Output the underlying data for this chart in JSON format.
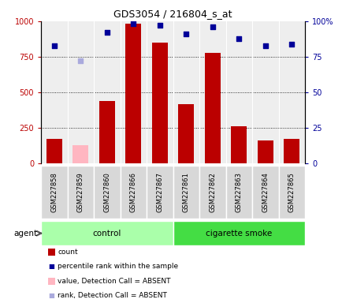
{
  "title": "GDS3054 / 216804_s_at",
  "samples": [
    "GSM227858",
    "GSM227859",
    "GSM227860",
    "GSM227866",
    "GSM227867",
    "GSM227861",
    "GSM227862",
    "GSM227863",
    "GSM227864",
    "GSM227865"
  ],
  "counts": [
    175,
    null,
    440,
    980,
    850,
    415,
    775,
    265,
    165,
    175
  ],
  "counts_absent": [
    null,
    130,
    null,
    null,
    null,
    null,
    null,
    null,
    null,
    null
  ],
  "percentile_ranks": [
    83,
    null,
    92,
    98,
    97,
    91,
    96,
    88,
    83,
    84
  ],
  "percentile_absent": [
    null,
    72,
    null,
    null,
    null,
    null,
    null,
    null,
    null,
    null
  ],
  "groups": [
    "control",
    "control",
    "control",
    "control",
    "control",
    "cigarette smoke",
    "cigarette smoke",
    "cigarette smoke",
    "cigarette smoke",
    "cigarette smoke"
  ],
  "ylim_left": [
    0,
    1000
  ],
  "ylim_right": [
    0,
    100
  ],
  "yticks_left": [
    0,
    250,
    500,
    750,
    1000
  ],
  "yticks_right": [
    0,
    25,
    50,
    75,
    100
  ],
  "bar_color_present": "#BB0000",
  "bar_color_absent": "#FFB6C1",
  "dot_color_present": "#000099",
  "dot_color_absent": "#AAAADD",
  "group_colors": {
    "control": "#AAFFAA",
    "cigarette smoke": "#44DD44"
  },
  "background_color": "#FFFFFF",
  "plot_bg": "#EEEEEE",
  "legend_items": [
    {
      "label": "count",
      "color": "#BB0000",
      "type": "rect"
    },
    {
      "label": "percentile rank within the sample",
      "color": "#000099",
      "type": "square"
    },
    {
      "label": "value, Detection Call = ABSENT",
      "color": "#FFB6C1",
      "type": "rect"
    },
    {
      "label": "rank, Detection Call = ABSENT",
      "color": "#AAAADD",
      "type": "square"
    }
  ]
}
